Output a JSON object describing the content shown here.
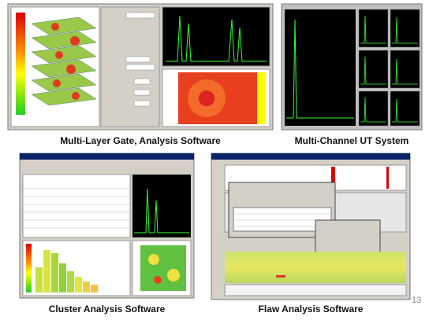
{
  "captions": [
    "Multi-Layer Gate, Analysis Software",
    "Multi-Channel UT System",
    "Cluster Analysis Software",
    "Flaw Analysis Software"
  ],
  "page_number": "13"
}
